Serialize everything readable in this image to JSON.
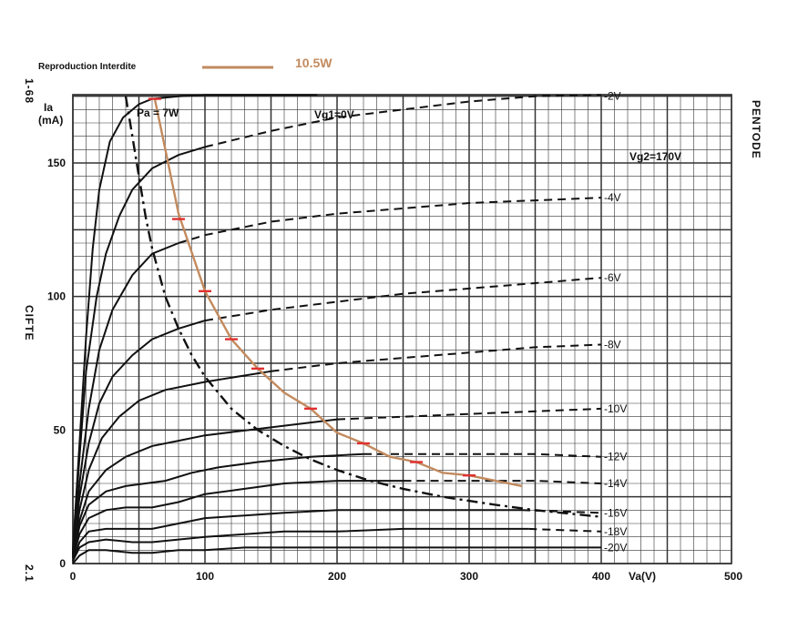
{
  "header": {
    "notice": "Reproduction Interdite",
    "overlay_legend_label": "10.5W",
    "overlay_color": "#c28a5e",
    "marker_color": "#e03030"
  },
  "side_labels": {
    "left_top": "1-68",
    "left_middle": "CIFTE",
    "left_bottom": "2.1",
    "right": "PENTODE"
  },
  "chart_data": {
    "type": "line",
    "xlabel": "Va(V)",
    "ylabel_line1": "Ia",
    "ylabel_line2": "(mA)",
    "xlim": [
      0,
      500
    ],
    "ylim": [
      0,
      175
    ],
    "x_ticks": [
      0,
      100,
      200,
      300,
      400,
      500
    ],
    "y_ticks": [
      0,
      50,
      100,
      150
    ],
    "grid": true,
    "annotations": {
      "pa_label": "Pa = 7W",
      "vg1_label": "Vg1=0V",
      "vg2_label": "Vg2=170V"
    },
    "series": [
      {
        "name": "Vg1=0V",
        "label": "",
        "style": "solid-to-dashed",
        "dash_from": 185,
        "points": [
          [
            0,
            5
          ],
          [
            5,
            45
          ],
          [
            10,
            85
          ],
          [
            15,
            118
          ],
          [
            20,
            140
          ],
          [
            28,
            158
          ],
          [
            38,
            167
          ],
          [
            50,
            172
          ],
          [
            60,
            174
          ],
          [
            80,
            175
          ],
          [
            100,
            176
          ],
          [
            120,
            177
          ],
          [
            140,
            178
          ],
          [
            185,
            180
          ]
        ]
      },
      {
        "name": "-2V",
        "label": "-2V",
        "style": "solid-to-dashed",
        "dash_from": 100,
        "points": [
          [
            0,
            4
          ],
          [
            5,
            40
          ],
          [
            10,
            72
          ],
          [
            18,
            100
          ],
          [
            25,
            116
          ],
          [
            35,
            130
          ],
          [
            45,
            140
          ],
          [
            60,
            148
          ],
          [
            80,
            153
          ],
          [
            100,
            156
          ],
          [
            150,
            162
          ],
          [
            200,
            167
          ],
          [
            250,
            170
          ],
          [
            300,
            173
          ],
          [
            350,
            175
          ],
          [
            400,
            177
          ]
        ]
      },
      {
        "name": "-4V",
        "label": "-4V",
        "style": "solid-to-dashed",
        "dash_from": 90,
        "points": [
          [
            0,
            3
          ],
          [
            5,
            30
          ],
          [
            12,
            58
          ],
          [
            20,
            80
          ],
          [
            30,
            95
          ],
          [
            45,
            108
          ],
          [
            60,
            116
          ],
          [
            80,
            120
          ],
          [
            100,
            123
          ],
          [
            150,
            128
          ],
          [
            200,
            131
          ],
          [
            250,
            133
          ],
          [
            300,
            135
          ],
          [
            350,
            136
          ],
          [
            400,
            137
          ]
        ]
      },
      {
        "name": "-6V",
        "label": "-6V",
        "style": "solid-to-dashed",
        "dash_from": 120,
        "points": [
          [
            0,
            3
          ],
          [
            5,
            25
          ],
          [
            12,
            45
          ],
          [
            20,
            60
          ],
          [
            30,
            70
          ],
          [
            45,
            78
          ],
          [
            60,
            84
          ],
          [
            80,
            88
          ],
          [
            100,
            91
          ],
          [
            150,
            95
          ],
          [
            200,
            98
          ],
          [
            250,
            101
          ],
          [
            300,
            103
          ],
          [
            350,
            105
          ],
          [
            400,
            107
          ]
        ]
      },
      {
        "name": "-8V",
        "label": "-8V",
        "style": "solid-to-dashed",
        "dash_from": 160,
        "points": [
          [
            0,
            2
          ],
          [
            5,
            20
          ],
          [
            12,
            35
          ],
          [
            22,
            47
          ],
          [
            35,
            55
          ],
          [
            50,
            61
          ],
          [
            70,
            65
          ],
          [
            100,
            68
          ],
          [
            150,
            72
          ],
          [
            200,
            75
          ],
          [
            250,
            77
          ],
          [
            300,
            79
          ],
          [
            350,
            81
          ],
          [
            400,
            82
          ]
        ]
      },
      {
        "name": "-10V",
        "label": "-10V",
        "style": "solid-to-dashed",
        "dash_from": 200,
        "points": [
          [
            0,
            2
          ],
          [
            5,
            16
          ],
          [
            12,
            27
          ],
          [
            25,
            35
          ],
          [
            40,
            40
          ],
          [
            60,
            44
          ],
          [
            80,
            46
          ],
          [
            100,
            48
          ],
          [
            150,
            51
          ],
          [
            200,
            54
          ],
          [
            250,
            55
          ],
          [
            300,
            56
          ],
          [
            350,
            57
          ],
          [
            400,
            58
          ]
        ]
      },
      {
        "name": "-12V",
        "label": "-12V",
        "style": "solid-to-dashed",
        "dash_from": 240,
        "points": [
          [
            0,
            2
          ],
          [
            5,
            14
          ],
          [
            12,
            22
          ],
          [
            25,
            27
          ],
          [
            40,
            29
          ],
          [
            55,
            30
          ],
          [
            70,
            31
          ],
          [
            90,
            34
          ],
          [
            110,
            36
          ],
          [
            140,
            38
          ],
          [
            180,
            40
          ],
          [
            220,
            41
          ],
          [
            250,
            41
          ],
          [
            300,
            41
          ],
          [
            350,
            41
          ],
          [
            400,
            40
          ]
        ]
      },
      {
        "name": "-14V",
        "label": "-14V",
        "style": "solid-to-dashed",
        "dash_from": 260,
        "points": [
          [
            0,
            2
          ],
          [
            5,
            11
          ],
          [
            12,
            17
          ],
          [
            25,
            20
          ],
          [
            40,
            21
          ],
          [
            60,
            21
          ],
          [
            80,
            23
          ],
          [
            100,
            26
          ],
          [
            130,
            28
          ],
          [
            160,
            30
          ],
          [
            200,
            31
          ],
          [
            250,
            31
          ],
          [
            300,
            31
          ],
          [
            350,
            31
          ],
          [
            400,
            30
          ]
        ]
      },
      {
        "name": "-16V",
        "label": "-16V",
        "style": "solid-to-dashed",
        "dash_from": 340,
        "points": [
          [
            0,
            1
          ],
          [
            5,
            8
          ],
          [
            12,
            12
          ],
          [
            25,
            13
          ],
          [
            45,
            13
          ],
          [
            60,
            13
          ],
          [
            80,
            15
          ],
          [
            100,
            17
          ],
          [
            130,
            18
          ],
          [
            160,
            19
          ],
          [
            200,
            20
          ],
          [
            250,
            20
          ],
          [
            300,
            20
          ],
          [
            340,
            20
          ],
          [
            400,
            19
          ]
        ]
      },
      {
        "name": "-18V",
        "label": "-18V",
        "style": "solid-to-dashed",
        "dash_from": 345,
        "points": [
          [
            0,
            1
          ],
          [
            5,
            6
          ],
          [
            12,
            8
          ],
          [
            25,
            9
          ],
          [
            45,
            8
          ],
          [
            60,
            8
          ],
          [
            80,
            9
          ],
          [
            100,
            10
          ],
          [
            130,
            11
          ],
          [
            160,
            12
          ],
          [
            200,
            12
          ],
          [
            250,
            13
          ],
          [
            300,
            13
          ],
          [
            345,
            13
          ],
          [
            400,
            12
          ]
        ]
      },
      {
        "name": "-20V",
        "label": "-20V",
        "style": "solid",
        "points": [
          [
            0,
            0
          ],
          [
            5,
            3
          ],
          [
            12,
            5
          ],
          [
            25,
            5
          ],
          [
            45,
            4
          ],
          [
            60,
            4
          ],
          [
            80,
            5
          ],
          [
            100,
            5
          ],
          [
            130,
            6
          ],
          [
            160,
            6
          ],
          [
            200,
            6
          ],
          [
            250,
            6
          ],
          [
            300,
            6
          ],
          [
            350,
            6
          ],
          [
            400,
            6
          ]
        ]
      },
      {
        "name": "Pa = 7W",
        "label": "",
        "style": "dashdot",
        "points": [
          [
            40,
            175
          ],
          [
            45,
            160
          ],
          [
            50,
            145
          ],
          [
            55,
            130
          ],
          [
            60,
            118
          ],
          [
            70,
            100
          ],
          [
            80,
            88
          ],
          [
            90,
            78
          ],
          [
            100,
            70
          ],
          [
            120,
            58
          ],
          [
            140,
            50
          ],
          [
            160,
            44
          ],
          [
            180,
            39
          ],
          [
            200,
            35
          ],
          [
            225,
            31
          ],
          [
            250,
            28
          ],
          [
            280,
            25
          ],
          [
            320,
            22
          ],
          [
            350,
            20
          ],
          [
            400,
            17.5
          ]
        ]
      },
      {
        "name": "10.5W",
        "label": "",
        "style": "overlay",
        "points": [
          [
            62,
            174
          ],
          [
            70,
            155
          ],
          [
            80,
            131
          ],
          [
            100,
            102
          ],
          [
            120,
            84
          ],
          [
            140,
            73
          ],
          [
            160,
            64
          ],
          [
            180,
            58
          ],
          [
            200,
            49
          ],
          [
            220,
            45
          ],
          [
            240,
            40
          ],
          [
            260,
            38
          ],
          [
            280,
            34
          ],
          [
            300,
            33
          ],
          [
            320,
            31
          ],
          [
            340,
            29
          ]
        ]
      }
    ],
    "markers_10_5W": [
      [
        62,
        174
      ],
      [
        80,
        129
      ],
      [
        100,
        102
      ],
      [
        120,
        84
      ],
      [
        140,
        73
      ],
      [
        180,
        58
      ],
      [
        220,
        45
      ],
      [
        260,
        38
      ],
      [
        300,
        33
      ]
    ]
  }
}
